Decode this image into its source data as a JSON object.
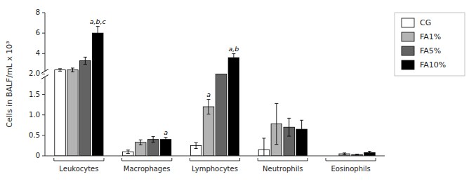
{
  "chart_data": {
    "type": "bar",
    "y_label": "Cells in BALF/mL x 10³",
    "categories": [
      "Leukocytes",
      "Macrophages",
      "Lymphocytes",
      "Neutrophils",
      "Eosinophils"
    ],
    "series": [
      {
        "name": "CG",
        "color": "#ffffff",
        "values": [
          2.4,
          0.1,
          0.25,
          0.15,
          0.0
        ],
        "errors": [
          0.12,
          0.04,
          0.07,
          0.28,
          0.0
        ]
      },
      {
        "name": "FA1%",
        "color": "#b3b3b3",
        "values": [
          2.4,
          0.33,
          1.2,
          0.78,
          0.05
        ],
        "errors": [
          0.18,
          0.06,
          0.18,
          0.5,
          0.02
        ]
      },
      {
        "name": "FA5%",
        "color": "#636363",
        "values": [
          3.3,
          0.4,
          2.0,
          0.7,
          0.03
        ],
        "errors": [
          0.35,
          0.07,
          0.0,
          0.22,
          0.01
        ]
      },
      {
        "name": "FA10%",
        "color": "#000000",
        "values": [
          6.0,
          0.4,
          3.6,
          0.65,
          0.08
        ],
        "errors": [
          0.65,
          0.05,
          0.38,
          0.22,
          0.03
        ]
      }
    ],
    "ylim": [
      0.0,
      8.0
    ],
    "yticks": [
      0,
      0.5,
      {
        "value": 1.0,
        "label": "1.0"
      },
      {
        "value": 1.5,
        "label": "1.5"
      },
      {
        "value": 2.0,
        "label": "2.0"
      },
      4,
      6,
      8
    ],
    "annotations": [
      {
        "text": "a,b,c",
        "category": "Leukocytes",
        "series": "FA10%"
      },
      {
        "text": "a",
        "category": "Macrophages",
        "series": "FA10%"
      },
      {
        "text": "a",
        "category": "Lymphocytes",
        "series": "FA1%"
      },
      {
        "text": "a,b",
        "category": "Lymphocytes",
        "series": "FA10%"
      }
    ],
    "grid": false,
    "legend": "right"
  }
}
